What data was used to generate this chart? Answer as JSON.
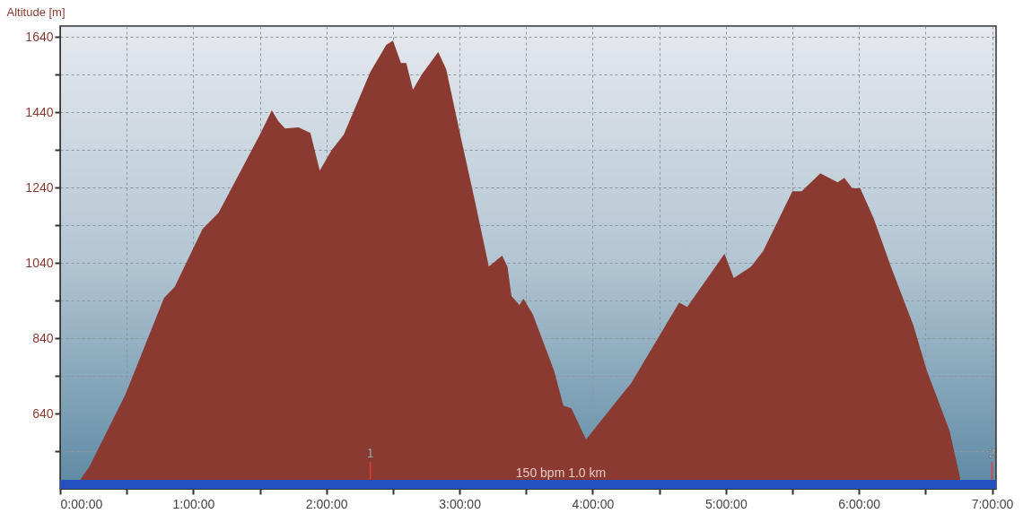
{
  "chart_data": {
    "type": "area",
    "ylabel": "Altitude  [m]",
    "x": [
      0.15,
      0.22,
      0.49,
      0.78,
      0.86,
      1.07,
      1.19,
      1.5,
      1.59,
      1.64,
      1.69,
      1.79,
      1.88,
      1.95,
      2.04,
      2.13,
      2.33,
      2.45,
      2.5,
      2.56,
      2.6,
      2.65,
      2.72,
      2.84,
      2.9,
      3.01,
      3.12,
      3.22,
      3.32,
      3.36,
      3.39,
      3.45,
      3.48,
      3.55,
      3.71,
      3.78,
      3.84,
      3.95,
      4.18,
      4.29,
      4.61,
      4.65,
      4.71,
      4.99,
      5.06,
      5.19,
      5.28,
      5.5,
      5.57,
      5.71,
      5.84,
      5.89,
      5.95,
      6.01,
      6.11,
      6.24,
      6.41,
      6.51,
      6.68,
      6.76
    ],
    "series": [
      {
        "color": "#8a3a31",
        "values": [
          464,
          499,
          690,
          947,
          976,
          1130,
          1173,
          1380,
          1445,
          1416,
          1397,
          1400,
          1385,
          1285,
          1340,
          1380,
          1547,
          1619,
          1630,
          1571,
          1571,
          1500,
          1542,
          1600,
          1554,
          1373,
          1197,
          1030,
          1059,
          1030,
          952,
          928,
          945,
          904,
          754,
          661,
          654,
          571,
          673,
          721,
          911,
          935,
          923,
          1064,
          1000,
          1030,
          1071,
          1230,
          1230,
          1278,
          1254,
          1266,
          1238,
          1238,
          1159,
          1030,
          873,
          754,
          595,
          469
        ]
      }
    ],
    "xlim": [
      0,
      7.03
    ],
    "xticks": [
      {
        "value": 0,
        "label": "0:00:00"
      },
      {
        "value": 0.5,
        "label": null
      },
      {
        "value": 1,
        "label": "1:00:00"
      },
      {
        "value": 1.5,
        "label": null
      },
      {
        "value": 2,
        "label": "2:00:00"
      },
      {
        "value": 2.5,
        "label": null
      },
      {
        "value": 3,
        "label": "3:00:00"
      },
      {
        "value": 3.5,
        "label": null
      },
      {
        "value": 4,
        "label": "4:00:00"
      },
      {
        "value": 4.5,
        "label": null
      },
      {
        "value": 5,
        "label": "5:00:00"
      },
      {
        "value": 5.5,
        "label": null
      },
      {
        "value": 6,
        "label": "6:00:00"
      },
      {
        "value": 6.5,
        "label": null
      },
      {
        "value": 7,
        "label": "7:00:00"
      }
    ],
    "ylim": [
      440,
      1669
    ],
    "yticks": [
      {
        "value": 540,
        "label": null
      },
      640,
      {
        "value": 740,
        "label": null
      },
      840,
      {
        "value": 940,
        "label": null
      },
      1040,
      {
        "value": 1140,
        "label": null
      },
      1240,
      {
        "value": 1340,
        "label": null
      },
      1440,
      {
        "value": 1540,
        "label": null
      },
      1640
    ],
    "grid": true,
    "bands": [
      {
        "axis": "y",
        "from": 440,
        "to": 464,
        "color": "#2450c0"
      }
    ],
    "annotations": [
      "150 bpm 1.0 km",
      {
        "text": "1",
        "x": 2.33,
        "y": 464
      },
      {
        "text": "2",
        "x": 7.0,
        "y": 464
      }
    ]
  }
}
